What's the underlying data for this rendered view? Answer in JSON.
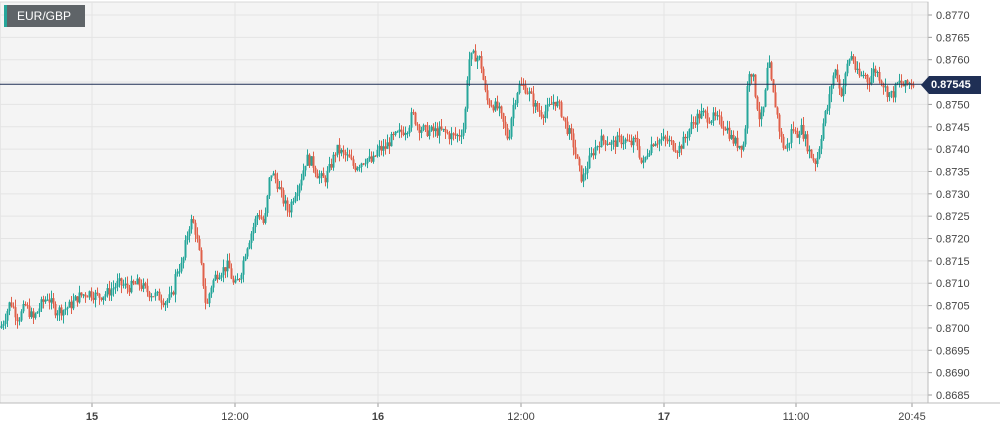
{
  "symbol": "EUR/GBP",
  "current_price": "0.87545",
  "colors": {
    "up": "#26a69a",
    "down": "#e0604a",
    "grid": "#e4e4e4",
    "background": "#f4f4f4",
    "price_line": "#1f2f55",
    "axis_text": "#444444"
  },
  "chart_data": {
    "type": "candlestick",
    "instrument": "EUR/GBP",
    "ylim": [
      0.8685,
      0.877
    ],
    "y_ticks": [
      "0.8770",
      "0.8765",
      "0.8760",
      "0.8755",
      "0.8750",
      "0.8745",
      "0.8740",
      "0.8735",
      "0.8730",
      "0.8725",
      "0.8720",
      "0.8715",
      "0.8710",
      "0.8705",
      "0.8700",
      "0.8695",
      "0.8690",
      "0.8685"
    ],
    "x_ticks": [
      {
        "label": "15",
        "bold": true
      },
      {
        "label": "12:00",
        "bold": false
      },
      {
        "label": "16",
        "bold": true
      },
      {
        "label": "12:00",
        "bold": false
      },
      {
        "label": "17",
        "bold": true
      },
      {
        "label": "11:00",
        "bold": false
      },
      {
        "label": "20:45",
        "bold": false
      }
    ],
    "grid": true,
    "last_price": 0.87545,
    "path": [
      [
        0,
        0.87
      ],
      [
        4,
        0.8702
      ],
      [
        10,
        0.8706
      ],
      [
        18,
        0.8702
      ],
      [
        25,
        0.8705
      ],
      [
        33,
        0.8702
      ],
      [
        40,
        0.8705
      ],
      [
        47,
        0.8707
      ],
      [
        55,
        0.8704
      ],
      [
        62,
        0.8704
      ],
      [
        70,
        0.8705
      ],
      [
        78,
        0.8707
      ],
      [
        88,
        0.8708
      ],
      [
        98,
        0.8707
      ],
      [
        108,
        0.8708
      ],
      [
        118,
        0.871
      ],
      [
        128,
        0.8709
      ],
      [
        138,
        0.871
      ],
      [
        148,
        0.8708
      ],
      [
        158,
        0.8707
      ],
      [
        165,
        0.8706
      ],
      [
        172,
        0.8707
      ],
      [
        176,
        0.8713
      ],
      [
        182,
        0.8714
      ],
      [
        186,
        0.872
      ],
      [
        190,
        0.8724
      ],
      [
        194,
        0.8723
      ],
      [
        198,
        0.8718
      ],
      [
        202,
        0.8712
      ],
      [
        206,
        0.8704
      ],
      [
        210,
        0.8709
      ],
      [
        216,
        0.8712
      ],
      [
        222,
        0.8713
      ],
      [
        228,
        0.8714
      ],
      [
        234,
        0.8709
      ],
      [
        240,
        0.8712
      ],
      [
        246,
        0.8718
      ],
      [
        252,
        0.8722
      ],
      [
        258,
        0.8726
      ],
      [
        264,
        0.8723
      ],
      [
        270,
        0.8735
      ],
      [
        276,
        0.8733
      ],
      [
        282,
        0.8729
      ],
      [
        288,
        0.8726
      ],
      [
        294,
        0.873
      ],
      [
        300,
        0.8733
      ],
      [
        306,
        0.8738
      ],
      [
        312,
        0.8737
      ],
      [
        318,
        0.8734
      ],
      [
        324,
        0.8733
      ],
      [
        330,
        0.8736
      ],
      [
        336,
        0.874
      ],
      [
        342,
        0.8739
      ],
      [
        348,
        0.8738
      ],
      [
        354,
        0.8736
      ],
      [
        360,
        0.8737
      ],
      [
        366,
        0.8738
      ],
      [
        372,
        0.8737
      ],
      [
        378,
        0.874
      ],
      [
        384,
        0.874
      ],
      [
        390,
        0.8742
      ],
      [
        396,
        0.8743
      ],
      [
        402,
        0.8744
      ],
      [
        408,
        0.8745
      ],
      [
        412,
        0.8748
      ],
      [
        418,
        0.8745
      ],
      [
        426,
        0.8744
      ],
      [
        434,
        0.8744
      ],
      [
        442,
        0.8744
      ],
      [
        450,
        0.8743
      ],
      [
        458,
        0.8743
      ],
      [
        464,
        0.8745
      ],
      [
        468,
        0.876
      ],
      [
        474,
        0.8761
      ],
      [
        480,
        0.876
      ],
      [
        486,
        0.8751
      ],
      [
        492,
        0.875
      ],
      [
        498,
        0.8749
      ],
      [
        504,
        0.8745
      ],
      [
        508,
        0.8742
      ],
      [
        512,
        0.8749
      ],
      [
        518,
        0.8754
      ],
      [
        524,
        0.8754
      ],
      [
        530,
        0.8752
      ],
      [
        536,
        0.8749
      ],
      [
        542,
        0.8748
      ],
      [
        548,
        0.8749
      ],
      [
        554,
        0.8751
      ],
      [
        560,
        0.8749
      ],
      [
        566,
        0.8745
      ],
      [
        572,
        0.8742
      ],
      [
        578,
        0.8736
      ],
      [
        582,
        0.8733
      ],
      [
        588,
        0.8737
      ],
      [
        594,
        0.874
      ],
      [
        600,
        0.8742
      ],
      [
        606,
        0.8742
      ],
      [
        612,
        0.8741
      ],
      [
        618,
        0.8742
      ],
      [
        624,
        0.8742
      ],
      [
        630,
        0.8741
      ],
      [
        636,
        0.8742
      ],
      [
        642,
        0.8736
      ],
      [
        648,
        0.874
      ],
      [
        654,
        0.8742
      ],
      [
        660,
        0.8742
      ],
      [
        666,
        0.8742
      ],
      [
        672,
        0.8741
      ],
      [
        678,
        0.874
      ],
      [
        684,
        0.8742
      ],
      [
        690,
        0.8745
      ],
      [
        696,
        0.8747
      ],
      [
        702,
        0.8748
      ],
      [
        708,
        0.8747
      ],
      [
        714,
        0.8747
      ],
      [
        720,
        0.8746
      ],
      [
        726,
        0.8745
      ],
      [
        732,
        0.8742
      ],
      [
        738,
        0.8741
      ],
      [
        744,
        0.8741
      ],
      [
        748,
        0.8758
      ],
      [
        752,
        0.8757
      ],
      [
        756,
        0.8751
      ],
      [
        760,
        0.8746
      ],
      [
        764,
        0.875
      ],
      [
        768,
        0.876
      ],
      [
        772,
        0.8753
      ],
      [
        776,
        0.8749
      ],
      [
        780,
        0.8743
      ],
      [
        784,
        0.874
      ],
      [
        788,
        0.8741
      ],
      [
        792,
        0.8745
      ],
      [
        796,
        0.8743
      ],
      [
        800,
        0.8745
      ],
      [
        804,
        0.8743
      ],
      [
        808,
        0.874
      ],
      [
        812,
        0.8738
      ],
      [
        816,
        0.8737
      ],
      [
        820,
        0.8742
      ],
      [
        824,
        0.8747
      ],
      [
        828,
        0.875
      ],
      [
        832,
        0.8756
      ],
      [
        836,
        0.8758
      ],
      [
        840,
        0.8752
      ],
      [
        844,
        0.8755
      ],
      [
        848,
        0.876
      ],
      [
        852,
        0.8761
      ],
      [
        856,
        0.8757
      ],
      [
        860,
        0.8756
      ],
      [
        864,
        0.8757
      ],
      [
        868,
        0.8755
      ],
      [
        874,
        0.8758
      ],
      [
        880,
        0.8756
      ],
      [
        886,
        0.8753
      ],
      [
        892,
        0.8752
      ],
      [
        898,
        0.8755
      ],
      [
        904,
        0.8754
      ],
      [
        910,
        0.8755
      ],
      [
        913,
        0.87545
      ]
    ]
  }
}
